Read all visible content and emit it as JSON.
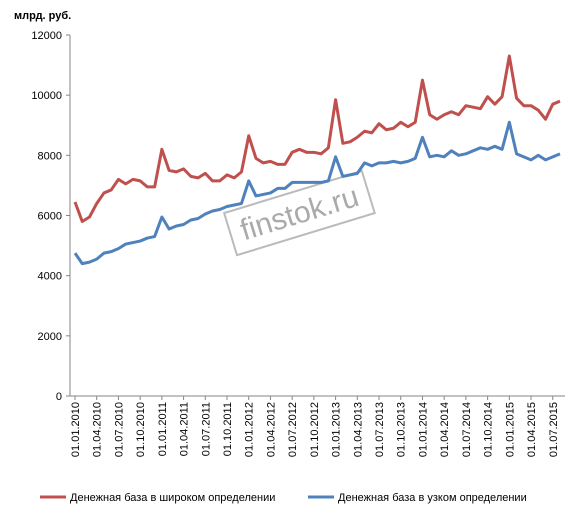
{
  "chart_data": {
    "type": "line",
    "y_label": "млрд. руб.",
    "watermark": "finstok.ru",
    "categories": [
      "01.01.2010",
      null,
      null,
      "01.04.2010",
      null,
      null,
      "01.07.2010",
      null,
      null,
      "01.10.2010",
      null,
      null,
      "01.01.2011",
      null,
      null,
      "01.04.2011",
      null,
      null,
      "01.07.2011",
      null,
      null,
      "01.10.2011",
      null,
      null,
      "01.01.2012",
      null,
      null,
      "01.04.2012",
      null,
      null,
      "01.07.2012",
      null,
      null,
      "01.10.2012",
      null,
      null,
      "01.01.2013",
      null,
      null,
      "01.04.2013",
      null,
      null,
      "01.07.2013",
      null,
      null,
      "01.10.2013",
      null,
      null,
      "01.01.2014",
      null,
      null,
      "01.04.2014",
      null,
      null,
      "01.07.2014",
      null,
      null,
      "01.10.2014",
      null,
      null,
      "01.01.2015",
      null,
      null,
      "01.04.2015",
      null,
      null,
      "01.07.2015",
      null
    ],
    "series": [
      {
        "name": "Денежная  база в широком определении",
        "color": "#c0504d",
        "values": [
          6450,
          5800,
          5950,
          6400,
          6750,
          6850,
          7200,
          7050,
          7200,
          7150,
          6950,
          6950,
          8200,
          7500,
          7450,
          7550,
          7300,
          7250,
          7400,
          7150,
          7150,
          7350,
          7250,
          7450,
          8650,
          7900,
          7750,
          7800,
          7700,
          7700,
          8100,
          8200,
          8100,
          8100,
          8050,
          8250,
          9850,
          8400,
          8450,
          8600,
          8800,
          8750,
          9050,
          8850,
          8900,
          9100,
          8950,
          9100,
          10500,
          9350,
          9200,
          9350,
          9450,
          9350,
          9650,
          9600,
          9550,
          9950,
          9700,
          9950,
          11300,
          9900,
          9650,
          9650,
          9500,
          9200,
          9700,
          9800
        ]
      },
      {
        "name": "Денежная  база в узком определении",
        "color": "#4f81bd",
        "values": [
          4750,
          4400,
          4450,
          4550,
          4750,
          4800,
          4900,
          5050,
          5100,
          5150,
          5250,
          5300,
          5950,
          5550,
          5650,
          5700,
          5850,
          5900,
          6050,
          6150,
          6200,
          6300,
          6350,
          6400,
          7150,
          6650,
          6700,
          6750,
          6900,
          6900,
          7100,
          7100,
          7100,
          7100,
          7100,
          7150,
          7950,
          7300,
          7350,
          7400,
          7750,
          7650,
          7750,
          7750,
          7800,
          7750,
          7800,
          7900,
          8600,
          7950,
          8000,
          7950,
          8150,
          8000,
          8050,
          8150,
          8250,
          8200,
          8300,
          8200,
          9100,
          8050,
          7950,
          7850,
          8000,
          7850,
          7950,
          8050
        ]
      }
    ],
    "ylim": [
      0,
      12000
    ],
    "yticks": [
      0,
      2000,
      4000,
      6000,
      8000,
      10000,
      12000
    ],
    "grid": false,
    "legend": "bottom"
  }
}
